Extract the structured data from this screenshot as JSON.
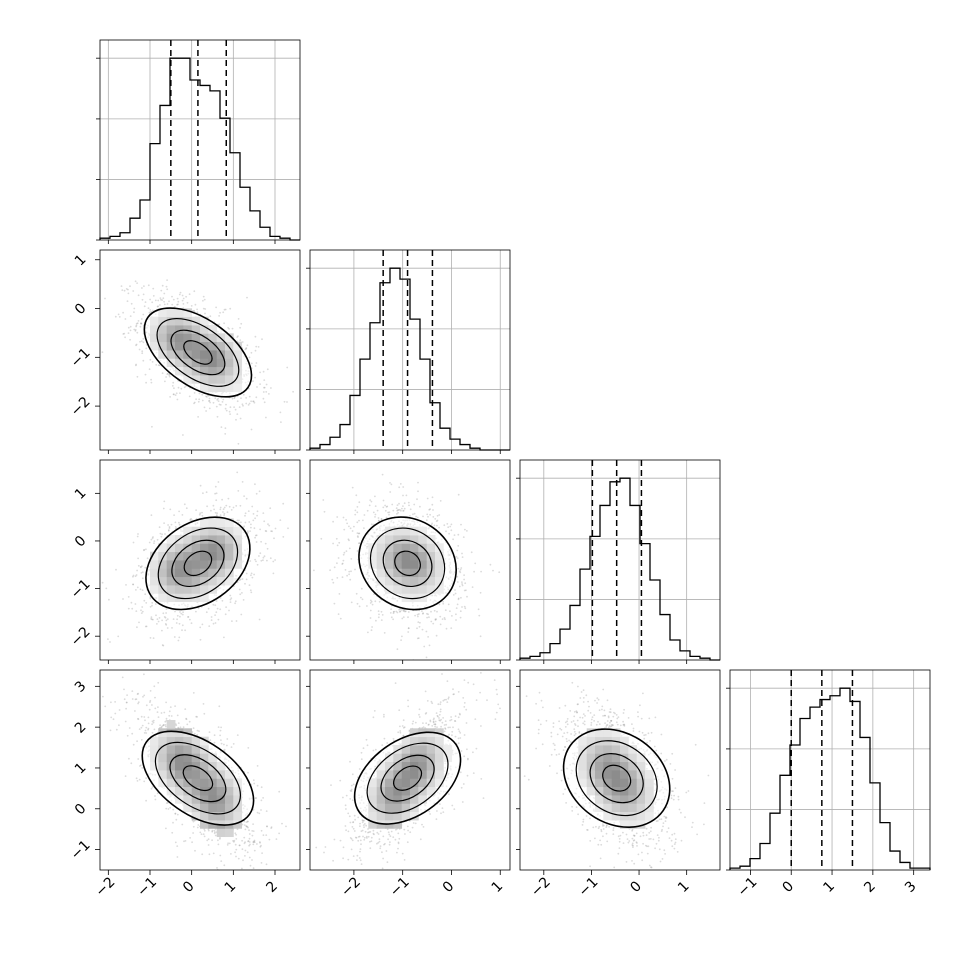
{
  "chart_data": {
    "type": "corner",
    "title": "",
    "grid": true,
    "n_params": 4,
    "params": [
      {
        "label": "",
        "range": [
          -2.2,
          2.6
        ],
        "ticks": [
          -2,
          -1,
          0,
          1,
          2
        ],
        "tick_labels": [
          "−2",
          "−1",
          "0",
          "1",
          "2"
        ],
        "quantiles": [
          -0.5,
          0.15,
          0.83
        ]
      },
      {
        "label": "",
        "range": [
          -2.9,
          1.2
        ],
        "ticks": [
          -2,
          -1,
          0,
          1
        ],
        "tick_labels": [
          "−2",
          "−1",
          "0",
          "1"
        ],
        "quantiles": [
          -1.4,
          -0.9,
          -0.39
        ]
      },
      {
        "label": "",
        "range": [
          -2.5,
          1.7
        ],
        "ticks": [
          -2,
          -1,
          0,
          1
        ],
        "tick_labels": [
          "−2",
          "−1",
          "0",
          "1"
        ],
        "quantiles": [
          -0.98,
          -0.47,
          0.05
        ]
      },
      {
        "label": "",
        "range": [
          -1.5,
          3.4
        ],
        "ticks": [
          -1,
          0,
          1,
          2,
          3
        ],
        "tick_labels": [
          "−1",
          "0",
          "1",
          "2",
          "3"
        ],
        "quantiles": [
          0.0,
          0.75,
          1.5
        ]
      }
    ],
    "histograms": [
      {
        "param": 0,
        "bin_edges_range": [
          -2.2,
          2.6
        ],
        "counts": [
          1,
          2,
          4,
          12,
          22,
          53,
          74,
          100,
          100,
          88,
          85,
          82,
          67,
          48,
          29,
          16,
          7,
          2,
          1,
          0
        ]
      },
      {
        "param": 1,
        "bin_edges_range": [
          -2.9,
          1.2
        ],
        "counts": [
          1,
          3,
          7,
          14,
          30,
          50,
          70,
          92,
          100,
          94,
          72,
          50,
          26,
          12,
          6,
          3,
          1,
          0,
          0,
          0
        ]
      },
      {
        "param": 2,
        "bin_edges_range": [
          -2.5,
          1.7
        ],
        "counts": [
          1,
          2,
          4,
          9,
          17,
          30,
          50,
          68,
          85,
          98,
          100,
          85,
          64,
          44,
          25,
          11,
          5,
          2,
          1,
          0
        ]
      },
      {
        "param": 3,
        "bin_edges_range": [
          -1.5,
          3.4
        ],
        "counts": [
          1,
          2,
          6,
          14,
          30,
          50,
          66,
          80,
          86,
          90,
          92,
          96,
          89,
          70,
          46,
          25,
          10,
          4,
          1,
          1
        ]
      }
    ],
    "pairs": [
      {
        "x": 0,
        "y": 1,
        "mean": [
          0.15,
          -0.9
        ],
        "sd": [
          0.62,
          0.5
        ],
        "corr": -0.55,
        "modes": [
          [
            -0.4,
            -0.6
          ],
          [
            0.6,
            -1.0
          ]
        ]
      },
      {
        "x": 0,
        "y": 2,
        "mean": [
          0.15,
          -0.47
        ],
        "sd": [
          0.62,
          0.52
        ],
        "corr": 0.35,
        "modes": [
          [
            -0.4,
            -0.6
          ],
          [
            0.6,
            -0.2
          ]
        ]
      },
      {
        "x": 1,
        "y": 2,
        "mean": [
          -0.9,
          -0.47
        ],
        "sd": [
          0.5,
          0.52
        ],
        "corr": -0.2,
        "modes": [
          [
            -1.0,
            -0.3
          ],
          [
            -0.7,
            -0.5
          ]
        ]
      },
      {
        "x": 0,
        "y": 3,
        "mean": [
          0.15,
          0.75
        ],
        "sd": [
          0.62,
          0.75
        ],
        "corr": -0.65,
        "modes": [
          [
            -0.3,
            1.2
          ],
          [
            0.6,
            0.2
          ]
        ]
      },
      {
        "x": 1,
        "y": 3,
        "mean": [
          -0.9,
          0.75
        ],
        "sd": [
          0.5,
          0.75
        ],
        "corr": 0.62,
        "modes": [
          [
            -1.2,
            0.3
          ],
          [
            -0.7,
            1.1
          ]
        ]
      },
      {
        "x": 2,
        "y": 3,
        "mean": [
          -0.47,
          0.75
        ],
        "sd": [
          0.52,
          0.75
        ],
        "corr": -0.45,
        "modes": [
          [
            -0.7,
            1.1
          ],
          [
            -0.3,
            0.5
          ]
        ]
      }
    ]
  }
}
